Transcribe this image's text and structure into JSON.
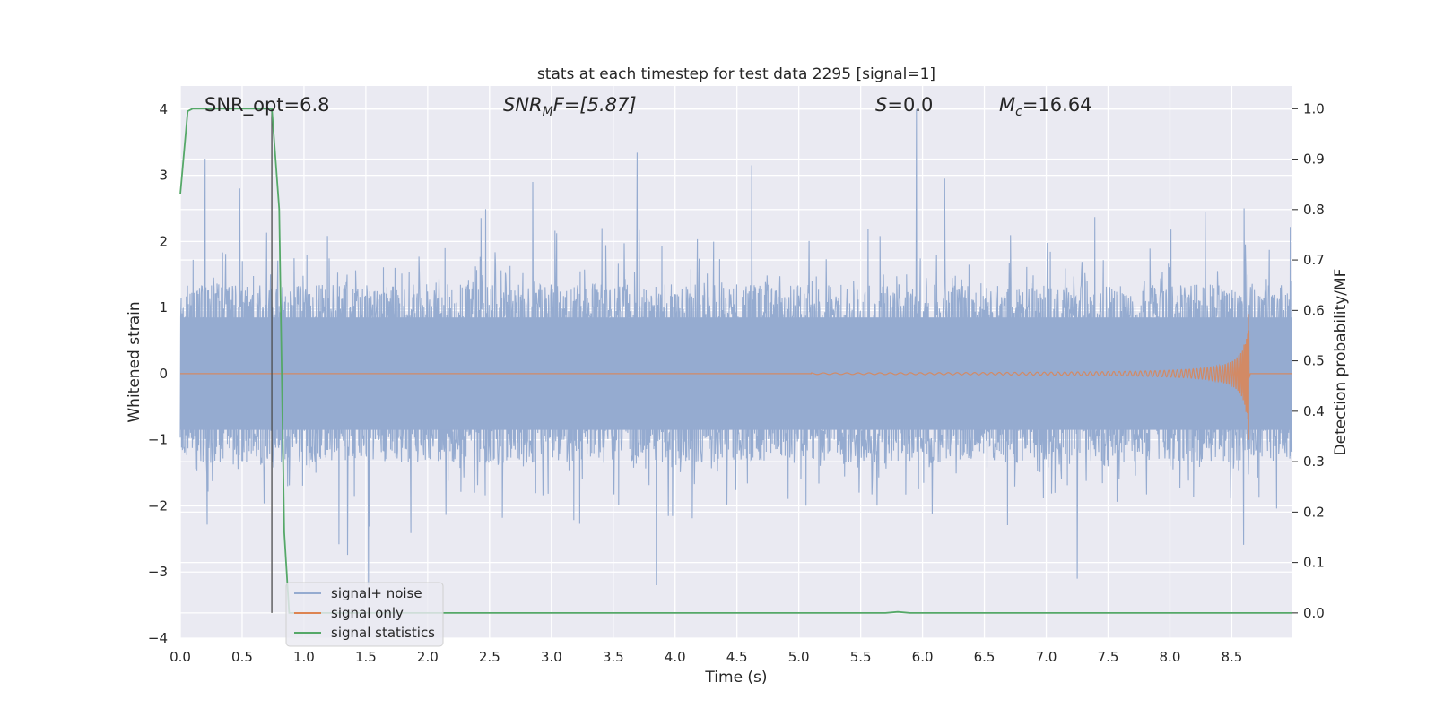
{
  "chart_data": {
    "type": "line",
    "title": "stats at each timestep for test data 2295 [signal=1]",
    "xlabel": "Time (s)",
    "ylabel_left": "Whitened strain",
    "ylabel_right": "Detection probability/MF",
    "xlim": [
      0.0,
      8.99
    ],
    "ylim_left": [
      -4.0,
      4.35
    ],
    "ylim_right": [
      -0.05,
      1.045
    ],
    "x_ticks": [
      "0.0",
      "0.5",
      "1.0",
      "1.5",
      "2.0",
      "2.5",
      "3.0",
      "3.5",
      "4.0",
      "4.5",
      "5.0",
      "5.5",
      "6.0",
      "6.5",
      "7.0",
      "7.5",
      "8.0",
      "8.5"
    ],
    "y_ticks_left": [
      "4",
      "3",
      "2",
      "1",
      "0",
      "−1",
      "−2",
      "−3",
      "−4"
    ],
    "y_ticks_right": [
      "1.0",
      "0.9",
      "0.8",
      "0.7",
      "0.6",
      "0.5",
      "0.4",
      "0.3",
      "0.2",
      "0.1",
      "0.0"
    ],
    "grid": true,
    "legend_position": "lower-left",
    "annotations": {
      "snr_opt": "SNR_opt=6.8",
      "snr_mf_base": "SNR",
      "snr_mf_sub": "M",
      "snr_mf_rest": "F=[5.87]",
      "s_name": "S",
      "s_value": "=0.0",
      "mc_name": "M",
      "mc_sub": "c",
      "mc_value": "=16.64"
    },
    "vertical_marker_x": 0.74,
    "series": [
      {
        "name": "signal+ noise",
        "color": "#95abd0",
        "axis": "left",
        "description_level": "whitened noise with mostly |y|<1.5, peaks to ~3.2 and down to ~-3.2",
        "peaks_x": [
          0.2,
          0.48,
          1.52,
          2.85,
          3.85,
          4.62,
          5.95,
          6.18,
          7.25,
          8.6
        ],
        "peaks_y": [
          3.25,
          2.8,
          -3.2,
          2.9,
          -3.2,
          3.15,
          4.0,
          2.95,
          -3.1,
          2.5
        ]
      },
      {
        "name": "signal only",
        "color": "#dd8452",
        "axis": "left",
        "chirp_start_x": 5.1,
        "merger_x": 8.64,
        "peak_amplitude": 1.22
      },
      {
        "name": "signal statistics",
        "color": "#55a868",
        "axis": "right",
        "x": [
          0.0,
          0.06,
          0.1,
          0.15,
          0.3,
          0.5,
          0.68,
          0.74,
          0.8,
          0.84,
          0.88,
          0.92,
          1.0,
          2.0,
          3.0,
          4.0,
          5.0,
          5.7,
          5.8,
          5.9,
          6.0,
          7.0,
          8.0,
          8.99
        ],
        "y": [
          0.83,
          0.995,
          1.0,
          1.0,
          1.0,
          1.0,
          1.0,
          1.0,
          0.8,
          0.16,
          0.0,
          0.0,
          0.0,
          0.0,
          0.0,
          0.0,
          0.0,
          0.0,
          0.002,
          0.0,
          0.0,
          0.0,
          0.0,
          0.0
        ]
      }
    ]
  }
}
